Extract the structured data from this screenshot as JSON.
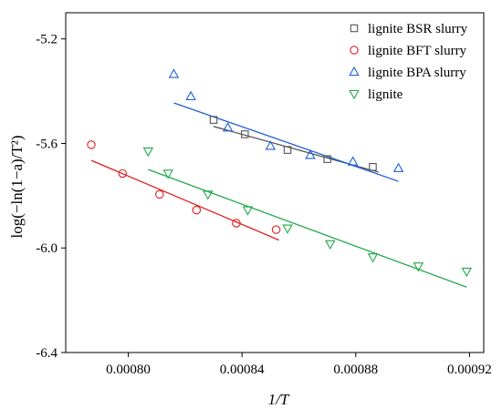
{
  "chart_data": {
    "type": "scatter",
    "title": "",
    "xlabel": "1/T",
    "ylabel": "log(−ln(1−a)/T²)",
    "xlim": [
      0.000778,
      0.000925
    ],
    "ylim": [
      -6.4,
      -5.1
    ],
    "x_ticks": [
      0.0008,
      0.00084,
      0.00088,
      0.00092
    ],
    "x_tick_labels": [
      "0.00080",
      "0.00084",
      "0.00088",
      "0.00092"
    ],
    "y_ticks": [
      -5.2,
      -5.6,
      -6.0,
      -6.4
    ],
    "y_tick_labels": [
      "-5.2",
      "-5.6",
      "-6.0",
      "-6.4"
    ],
    "grid": false,
    "legend_position": "top-right",
    "series": [
      {
        "name": "lignite BSR slurry",
        "marker": "square",
        "color": "#555555",
        "x": [
          0.00083,
          0.000841,
          0.000856,
          0.00087,
          0.000886
        ],
        "y": [
          -5.51,
          -5.565,
          -5.625,
          -5.66,
          -5.69
        ],
        "fit": {
          "x": [
            0.00083,
            0.000888
          ],
          "y": [
            -5.535,
            -5.71
          ]
        }
      },
      {
        "name": "lignite BFT slurry",
        "marker": "circle",
        "color": "#e02020",
        "x": [
          0.000787,
          0.000798,
          0.000811,
          0.000824,
          0.000838,
          0.000852
        ],
        "y": [
          -5.605,
          -5.715,
          -5.795,
          -5.855,
          -5.905,
          -5.93
        ],
        "fit": {
          "x": [
            0.000787,
            0.000853
          ],
          "y": [
            -5.665,
            -5.97
          ]
        }
      },
      {
        "name": "lignite BPA slurry",
        "marker": "triangle-up",
        "color": "#1f5fd6",
        "x": [
          0.000816,
          0.000822,
          0.000835,
          0.00085,
          0.000864,
          0.000879,
          0.000895
        ],
        "y": [
          -5.335,
          -5.42,
          -5.54,
          -5.61,
          -5.645,
          -5.67,
          -5.695
        ],
        "fit": {
          "x": [
            0.000816,
            0.000895
          ],
          "y": [
            -5.445,
            -5.745
          ]
        }
      },
      {
        "name": "lignite",
        "marker": "triangle-down",
        "color": "#22a84a",
        "x": [
          0.000807,
          0.000814,
          0.000828,
          0.000842,
          0.000856,
          0.000871,
          0.000886,
          0.000902,
          0.000919
        ],
        "y": [
          -5.63,
          -5.715,
          -5.795,
          -5.855,
          -5.925,
          -5.985,
          -6.035,
          -6.07,
          -6.09
        ],
        "fit": {
          "x": [
            0.000807,
            0.000919
          ],
          "y": [
            -5.7,
            -6.15
          ]
        }
      }
    ]
  }
}
